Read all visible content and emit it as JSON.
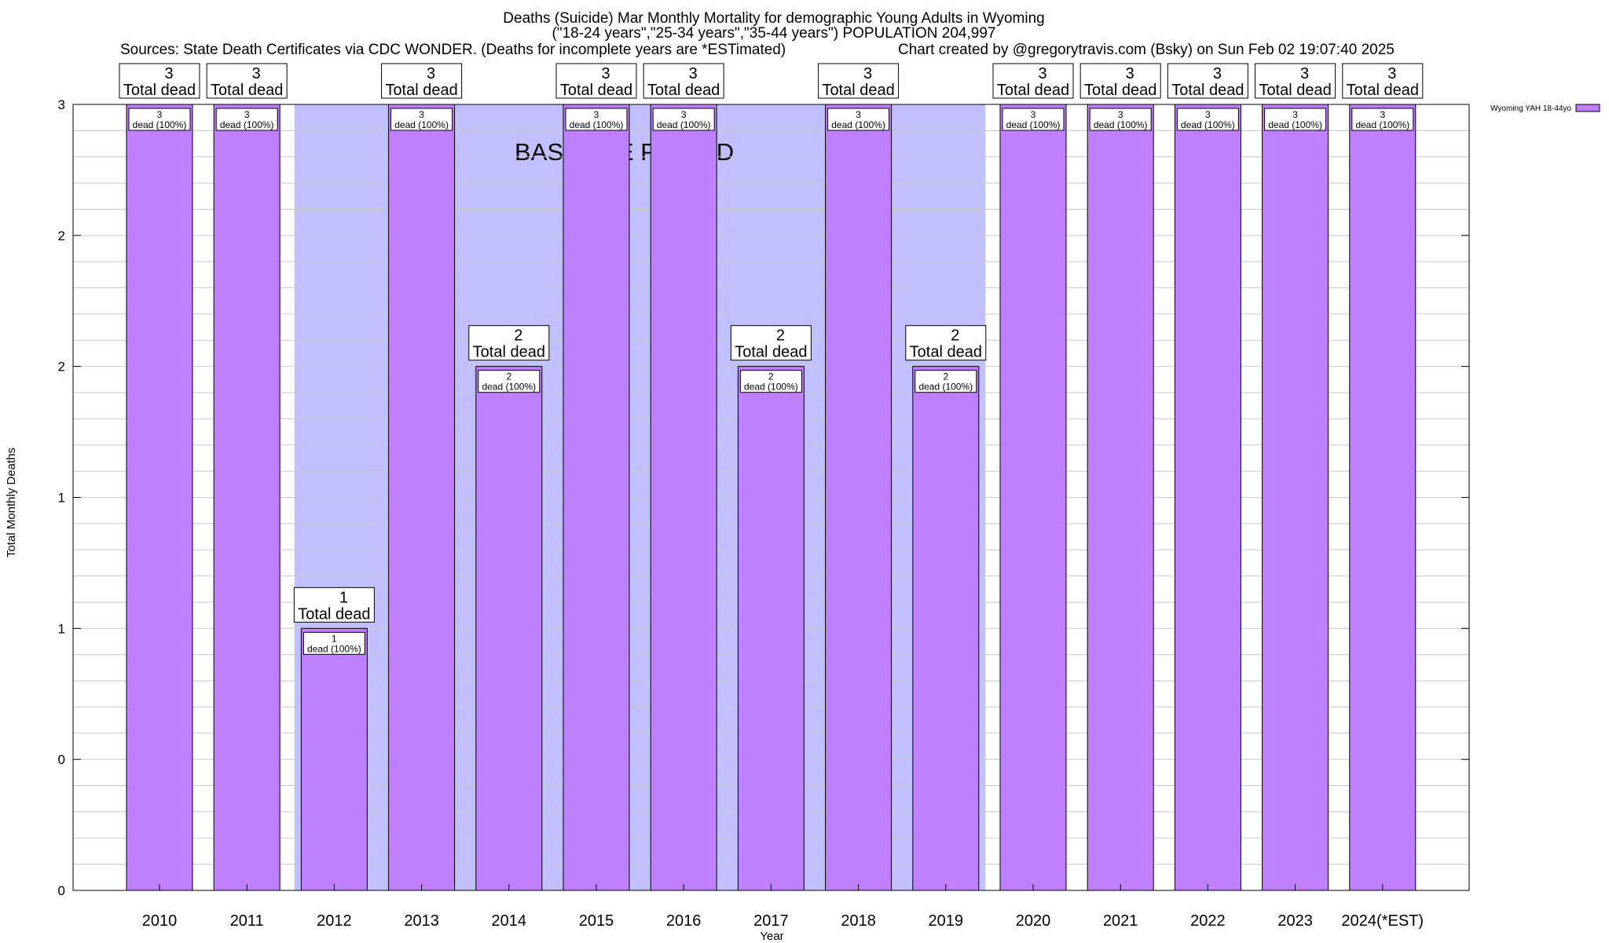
{
  "title": {
    "line1": "Deaths (Suicide) Mar Monthly Mortality for demographic Young Adults in Wyoming",
    "line2": "(\"18-24 years\",\"25-34 years\",\"35-44 years\") POPULATION 204,997",
    "sources": "Sources: State Death Certificates via CDC WONDER. (Deaths for incomplete years are *ESTimated)",
    "credit": "Chart created by @gregorytravis.com (Bsky) on Sun Feb 02 19:07:40 2025"
  },
  "baseline_label": "BASELINE PERIOD",
  "colors": {
    "bar": "#bf80ff",
    "baseline_band": "#c0c0ff",
    "grid": "#c8c8c8"
  },
  "chart_data": {
    "type": "bar",
    "categories": [
      "2010",
      "2011",
      "2012",
      "2013",
      "2014",
      "2015",
      "2016",
      "2017",
      "2018",
      "2019",
      "2020",
      "2021",
      "2022",
      "2023",
      "2024(*EST)"
    ],
    "series": [
      {
        "name": "Wyoming YAH 18-44yo",
        "values": [
          3,
          3,
          1,
          3,
          2,
          3,
          3,
          2,
          3,
          2,
          3,
          3,
          3,
          3,
          3
        ]
      }
    ],
    "top_labels": [
      [
        "3",
        "Total dead"
      ],
      [
        "3",
        "Total dead"
      ],
      [
        "1",
        "Total dead"
      ],
      [
        "3",
        "Total dead"
      ],
      [
        "2",
        "Total dead"
      ],
      [
        "3",
        "Total dead"
      ],
      [
        "3",
        "Total dead"
      ],
      [
        "2",
        "Total dead"
      ],
      [
        "3",
        "Total dead"
      ],
      [
        "2",
        "Total dead"
      ],
      [
        "3",
        "Total dead"
      ],
      [
        "3",
        "Total dead"
      ],
      [
        "3",
        "Total dead"
      ],
      [
        "3",
        "Total dead"
      ],
      [
        "3",
        "Total dead"
      ]
    ],
    "bar_labels": [
      [
        "3",
        "dead (100%)"
      ],
      [
        "3",
        "dead (100%)"
      ],
      [
        "1",
        "dead (100%)"
      ],
      [
        "3",
        "dead (100%)"
      ],
      [
        "2",
        "dead (100%)"
      ],
      [
        "3",
        "dead (100%)"
      ],
      [
        "3",
        "dead (100%)"
      ],
      [
        "2",
        "dead (100%)"
      ],
      [
        "3",
        "dead (100%)"
      ],
      [
        "2",
        "dead (100%)"
      ],
      [
        "3",
        "dead (100%)"
      ],
      [
        "3",
        "dead (100%)"
      ],
      [
        "3",
        "dead (100%)"
      ],
      [
        "3",
        "dead (100%)"
      ],
      [
        "3",
        "dead (100%)"
      ]
    ],
    "baseline_period": [
      "2012",
      "2019"
    ],
    "ylim": [
      0,
      3
    ],
    "y_tick_values": [
      0,
      0.5,
      1,
      1.5,
      2,
      2.5,
      3
    ],
    "y_tick_labels": [
      "0",
      "0",
      "1",
      "1",
      "2",
      "2",
      "3"
    ],
    "xlabel": "Year",
    "ylabel": "Total Monthly Deaths",
    "legend_position": "top-right",
    "grid": true
  }
}
